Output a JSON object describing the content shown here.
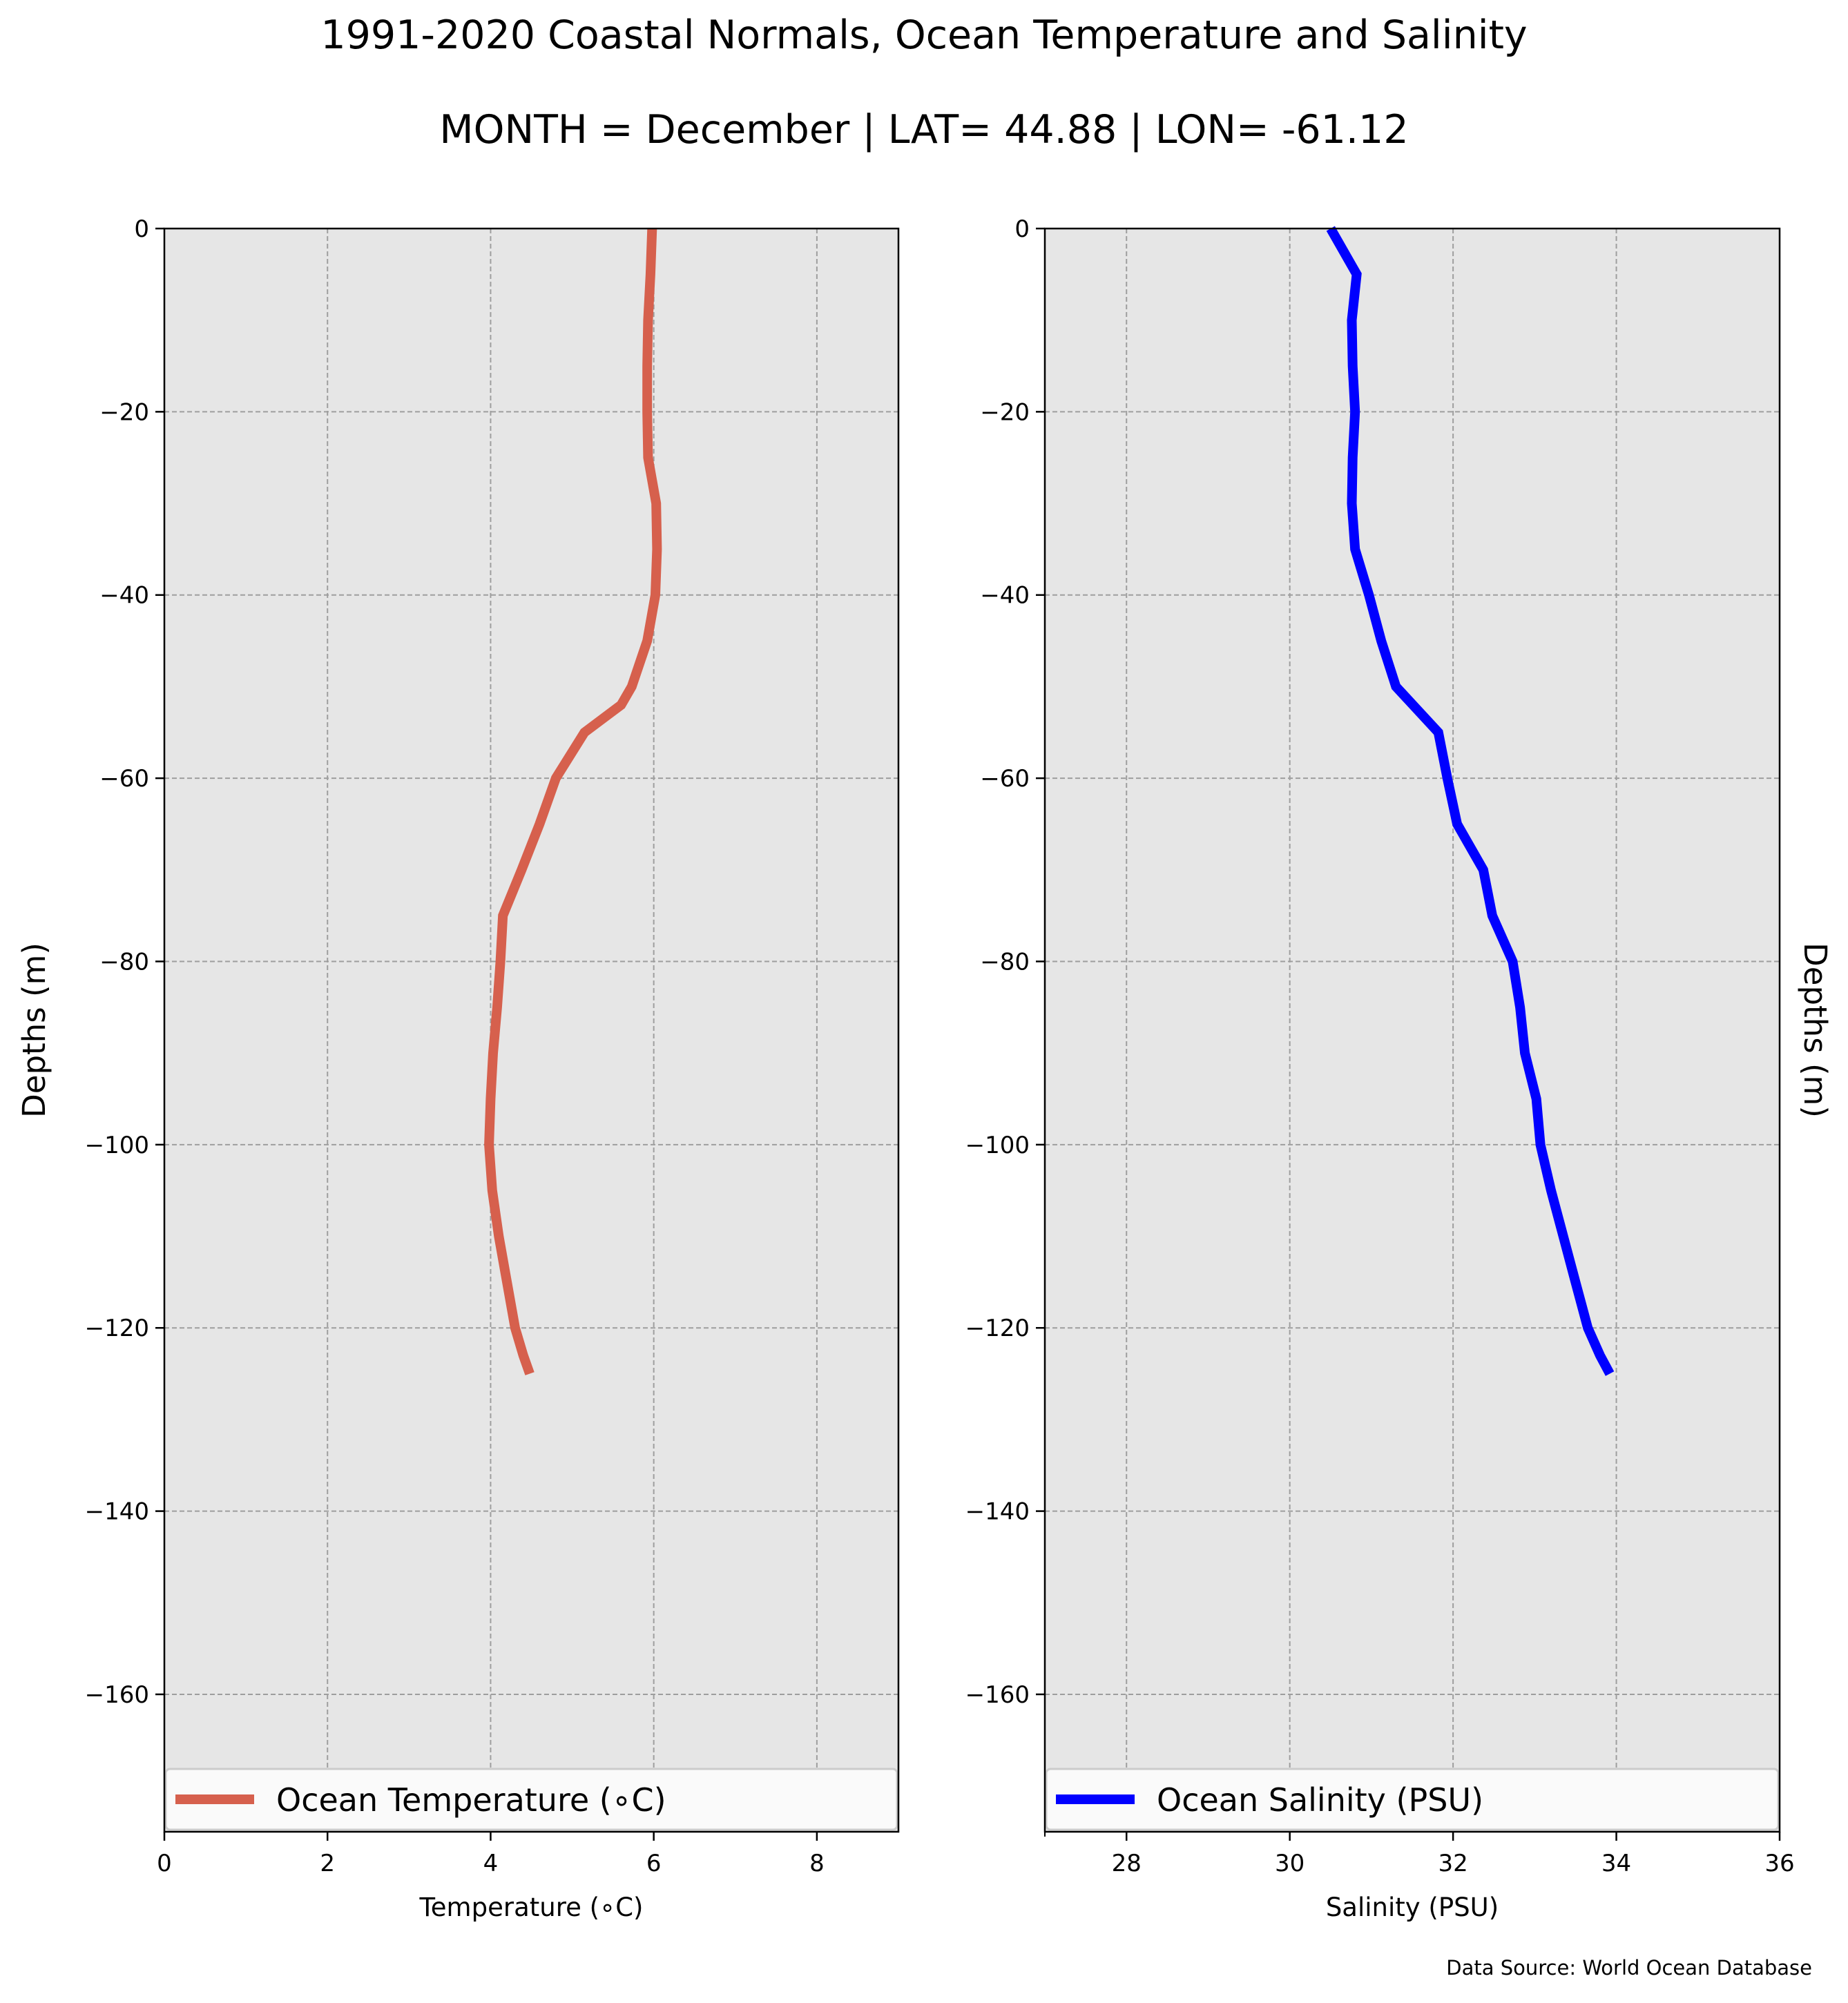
{
  "figure": {
    "title": "1991-2020 Coastal Normals, Ocean Temperature and Salinity",
    "subtitle": "MONTH = December | LAT= 44.88 | LON= -61.12",
    "source": "Data Source: World Ocean Database"
  },
  "colors": {
    "panel_bg": "#e6e6e6",
    "grid": "#9e9e9e",
    "temperature": "#d6604d",
    "salinity": "#0000ff"
  },
  "chart_data": [
    {
      "type": "line",
      "xlabel": "Temperature ($^\\circ$C)",
      "xlabel_display": "Temperature (∘C)",
      "ylabel": "Depths (m)",
      "xlim": [
        0,
        9
      ],
      "ylim": [
        -175,
        0
      ],
      "xticks": [
        0,
        2,
        4,
        6,
        8
      ],
      "yticks": [
        0,
        -20,
        -40,
        -60,
        -80,
        -100,
        -120,
        -140,
        -160
      ],
      "ytick_labels": [
        "0",
        "−20",
        "−40",
        "−60",
        "−80",
        "−100",
        "−120",
        "−140",
        "−160"
      ],
      "grid": true,
      "legend": "bottom",
      "series": [
        {
          "name": "Ocean Temperature (∘C)",
          "x": [
            5.98,
            5.96,
            5.93,
            5.92,
            5.92,
            5.93,
            6.03,
            6.04,
            6.02,
            5.92,
            5.73,
            5.6,
            5.15,
            4.8,
            4.6,
            4.38,
            4.15,
            4.12,
            4.08,
            4.03,
            4.0,
            3.98,
            4.02,
            4.1,
            4.2,
            4.3,
            4.4,
            4.48
          ],
          "y": [
            0,
            -5,
            -10,
            -15,
            -20,
            -25,
            -30,
            -35,
            -40,
            -45,
            -50,
            -52,
            -55,
            -60,
            -65,
            -70,
            -75,
            -80,
            -85,
            -90,
            -95,
            -100,
            -105,
            -110,
            -115,
            -120,
            -123,
            -125
          ]
        }
      ]
    },
    {
      "type": "line",
      "xlabel": "Salinity (PSU)",
      "ylabel": "Depths (m)",
      "xlim": [
        27,
        36
      ],
      "ylim": [
        -175,
        0
      ],
      "xticks": [
        28,
        30,
        32,
        34,
        36
      ],
      "yticks": [
        0,
        -20,
        -40,
        -60,
        -80,
        -100,
        -120,
        -140,
        -160
      ],
      "ytick_labels": [
        "0",
        "−20",
        "−40",
        "−60",
        "−80",
        "−100",
        "−120",
        "−140",
        "−160"
      ],
      "grid": true,
      "legend": "bottom",
      "series": [
        {
          "name": "Ocean Salinity (PSU)",
          "x": [
            30.5,
            30.82,
            30.76,
            30.77,
            30.8,
            30.77,
            30.76,
            30.8,
            30.97,
            31.12,
            31.3,
            31.82,
            31.93,
            32.05,
            32.37,
            32.48,
            32.73,
            32.82,
            32.88,
            33.02,
            33.07,
            33.2,
            33.35,
            33.5,
            33.65,
            33.8,
            33.92
          ],
          "y": [
            0,
            -5,
            -10,
            -15,
            -20,
            -25,
            -30,
            -35,
            -40,
            -45,
            -50,
            -55,
            -60,
            -65,
            -70,
            -75,
            -80,
            -85,
            -90,
            -95,
            -100,
            -105,
            -110,
            -115,
            -120,
            -123,
            -125
          ]
        }
      ]
    }
  ]
}
